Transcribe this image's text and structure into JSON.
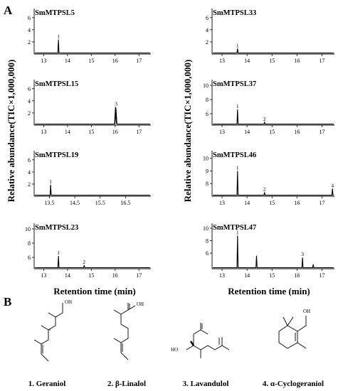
{
  "figure": {
    "panel_a_label": "A",
    "panel_b_label": "B",
    "ylabel": "Relative abundance(TIC×1,000,000)",
    "xlabel": "Retention time (min)"
  },
  "chart_data": [
    {
      "type": "line",
      "title": "SmMTPSL5",
      "xlim": [
        12.6,
        17.5
      ],
      "xticks": [
        "13",
        "14",
        "15",
        "16",
        "17"
      ],
      "xtick_values": [
        13,
        14,
        15,
        16,
        17
      ],
      "ylim": [
        0,
        7.5
      ],
      "yticks": [
        "2",
        "4",
        "6"
      ],
      "ytick_values": [
        2,
        4,
        6
      ],
      "peaks": [
        {
          "x": 13.62,
          "y": 2.4,
          "label": "1"
        }
      ]
    },
    {
      "type": "line",
      "title": "SmMTPSL15",
      "xlim": [
        12.6,
        17.5
      ],
      "xticks": [
        "13",
        "14",
        "15",
        "16",
        "17"
      ],
      "xtick_values": [
        13,
        14,
        15,
        16,
        17
      ],
      "ylim": [
        0,
        7.5
      ],
      "yticks": [
        "2",
        "4",
        "6"
      ],
      "ytick_values": [
        2,
        4,
        6
      ],
      "peaks": [
        {
          "x": 16.04,
          "y": 3.0,
          "label": "3",
          "double": true
        }
      ]
    },
    {
      "type": "line",
      "title": "SmMTPSL19",
      "xlim": [
        12.9,
        17.5
      ],
      "xticks": [
        "13.5",
        "14.5",
        "15.5",
        "16.5"
      ],
      "xtick_values": [
        13.5,
        14.5,
        15.5,
        16.5
      ],
      "ylim": [
        0,
        7.5
      ],
      "yticks": [
        "2",
        "4",
        "6"
      ],
      "ytick_values": [
        2,
        4,
        6
      ],
      "peaks": [
        {
          "x": 13.55,
          "y": 1.9,
          "label": "1"
        }
      ]
    },
    {
      "type": "line",
      "title": "SmMTPSL23",
      "xlim": [
        12.6,
        17.5
      ],
      "xticks": [
        "13",
        "14",
        "15",
        "16",
        "17"
      ],
      "xtick_values": [
        13,
        14,
        15,
        16,
        17
      ],
      "ylim": [
        4.4,
        10.8
      ],
      "yticks": [
        "6",
        "8",
        "10"
      ],
      "ytick_values": [
        6,
        8,
        10
      ],
      "peaks": [
        {
          "x": 13.62,
          "y": 6.2,
          "label": "1"
        },
        {
          "x": 14.7,
          "y": 4.9,
          "label": "2"
        }
      ]
    },
    {
      "type": "line",
      "title": "SmMTPSL33",
      "xlim": [
        12.6,
        17.5
      ],
      "xticks": [
        "13",
        "14",
        "15",
        "16",
        "17"
      ],
      "xtick_values": [
        13,
        14,
        15,
        16,
        17
      ],
      "ylim": [
        0,
        7.5
      ],
      "yticks": [
        "2",
        "4",
        "6"
      ],
      "ytick_values": [
        2,
        4,
        6
      ],
      "peaks": [
        {
          "x": 13.62,
          "y": 0.9,
          "label": "1"
        }
      ]
    },
    {
      "type": "line",
      "title": "SmMTPSL37",
      "xlim": [
        12.6,
        17.5
      ],
      "xticks": [
        "13",
        "14",
        "15",
        "16",
        "17"
      ],
      "xtick_values": [
        13,
        14,
        15,
        16,
        17
      ],
      "ylim": [
        4.4,
        10.8
      ],
      "yticks": [
        "6",
        "8",
        "10"
      ],
      "ytick_values": [
        6,
        8,
        10
      ],
      "peaks": [
        {
          "x": 13.62,
          "y": 6.6,
          "label": "1"
        },
        {
          "x": 14.7,
          "y": 4.8,
          "label": "2"
        }
      ]
    },
    {
      "type": "line",
      "title": "SmMTPSL46",
      "xlim": [
        12.6,
        17.5
      ],
      "xticks": [
        "13",
        "14",
        "15",
        "16",
        "17"
      ],
      "xtick_values": [
        13,
        14,
        15,
        16,
        17
      ],
      "ylim": [
        7.0,
        10.6
      ],
      "yticks": [
        "8",
        "9",
        "10"
      ],
      "ytick_values": [
        8,
        9,
        10
      ],
      "peaks": [
        {
          "x": 13.62,
          "y": 9.0,
          "label": "1"
        },
        {
          "x": 14.7,
          "y": 7.3,
          "label": "2"
        },
        {
          "x": 17.42,
          "y": 7.6,
          "label": "4"
        }
      ]
    },
    {
      "type": "line",
      "title": "SmMTPSL47",
      "xlim": [
        12.6,
        17.5
      ],
      "xticks": [
        "13",
        "14",
        "15",
        "16",
        "17"
      ],
      "xtick_values": [
        13,
        14,
        15,
        16,
        17
      ],
      "ylim": [
        3.5,
        10.8
      ],
      "yticks": [
        "6",
        "8",
        "10"
      ],
      "ytick_values": [
        6,
        8,
        10
      ],
      "peaks": [
        {
          "x": 13.62,
          "y": 8.8,
          "label": "1"
        },
        {
          "x": 14.38,
          "y": 5.6,
          "label": ""
        },
        {
          "x": 16.22,
          "y": 5.3,
          "label": "3"
        },
        {
          "x": 16.65,
          "y": 4.2,
          "label": ""
        }
      ]
    }
  ],
  "compounds": [
    {
      "name": "1. Geraniol",
      "oh_label": "OH"
    },
    {
      "name": "2. β-Linalol",
      "oh_label": "OH"
    },
    {
      "name": "3. Lavandulol",
      "oh_label": "HO"
    },
    {
      "name": "4. α-Cyclogeraniol",
      "oh_label": "OH"
    }
  ]
}
